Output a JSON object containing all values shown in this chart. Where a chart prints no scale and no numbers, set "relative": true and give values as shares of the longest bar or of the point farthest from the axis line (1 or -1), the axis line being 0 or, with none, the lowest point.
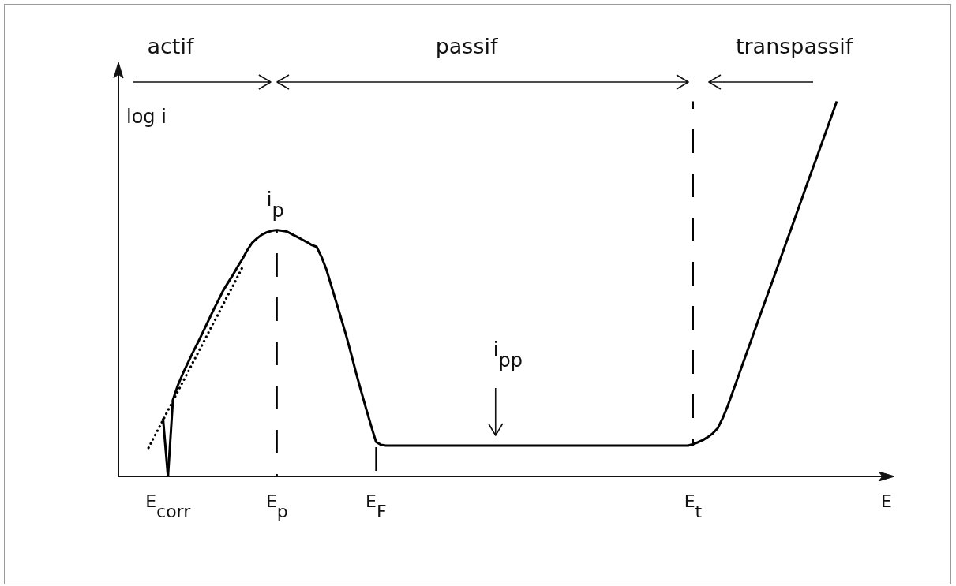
{
  "chart_data": {
    "type": "line",
    "relative": true,
    "xlabel": "E",
    "ylabel": "log i",
    "annotations": [
      "actif",
      "passif",
      "transpassif",
      "i$_{pp}$",
      {
        "text": "i$_{p}$",
        "x": "E$_{p}$",
        "y": 0.657
      }
    ],
    "categories": [
      null,
      null,
      null,
      null,
      null,
      null,
      null,
      null,
      null,
      null,
      "E$_{corr}$",
      null,
      null,
      null,
      null,
      null,
      null,
      null,
      null,
      null,
      null,
      null,
      null,
      null,
      null,
      null,
      null,
      null,
      null,
      null,
      null,
      null,
      "E$_{p}$",
      null,
      null,
      null,
      null,
      null,
      null,
      null,
      null,
      null,
      null,
      null,
      null,
      null,
      null,
      null,
      null,
      null,
      null,
      null,
      "E$_{F}$",
      null,
      null,
      null,
      null,
      null,
      null,
      null,
      null,
      null,
      null,
      null,
      null,
      null,
      null,
      null,
      null,
      null,
      null,
      null,
      null,
      null,
      null,
      null,
      null,
      null,
      null,
      null,
      null,
      null,
      null,
      null,
      null,
      null,
      null,
      null,
      null,
      null,
      null,
      null,
      null,
      null,
      null,
      null,
      null,
      null,
      null,
      null,
      null,
      null,
      null,
      null,
      null,
      null,
      null,
      null,
      null,
      null,
      null,
      null,
      null,
      null,
      null,
      null,
      "E$_{t}$",
      null,
      null,
      null,
      null,
      null,
      null,
      null,
      null,
      null,
      null,
      null,
      null,
      null,
      null,
      null,
      null,
      null,
      null,
      null,
      null,
      null,
      null,
      null,
      null,
      null,
      null,
      null,
      null,
      null,
      null,
      null,
      null,
      null,
      null,
      null,
      null,
      null,
      null,
      null,
      null
    ],
    "marker": "none",
    "line_style": "solid",
    "series": [
      {
        "color": "#000000",
        "values": [
          null,
          null,
          null,
          null,
          null,
          null,
          null,
          null,
          null,
          null,
          0,
          0.204,
          0.243,
          0.274,
          0.302,
          0.33,
          0.356,
          0.383,
          0.411,
          0.439,
          0.465,
          0.492,
          0.514,
          0.535,
          0.558,
          0.579,
          0.603,
          0.623,
          0.635,
          0.645,
          0.651,
          0.655,
          0.657,
          0.655,
          0.653,
          0.646,
          0.639,
          0.632,
          0.625,
          0.617,
          0.612,
          0.585,
          0.551,
          0.507,
          0.463,
          0.419,
          0.374,
          0.325,
          0.274,
          0.227,
          0.18,
          0.135,
          0.092,
          0.084,
          0.082,
          0.082,
          0.082,
          0.082,
          0.082,
          0.082,
          0.082,
          0.082,
          0.082,
          0.082,
          0.082,
          0.082,
          0.082,
          0.082,
          0.082,
          0.082,
          0.082,
          0.082,
          0.082,
          0.082,
          0.082,
          0.082,
          0.082,
          0.082,
          0.082,
          0.082,
          0.082,
          0.082,
          0.082,
          0.082,
          0.082,
          0.082,
          0.082,
          0.082,
          0.082,
          0.082,
          0.082,
          0.082,
          0.082,
          0.082,
          0.082,
          0.082,
          0.082,
          0.082,
          0.082,
          0.082,
          0.082,
          0.082,
          0.082,
          0.082,
          0.082,
          0.082,
          0.082,
          0.082,
          0.082,
          0.082,
          0.082,
          0.082,
          0.082,
          0.082,
          0.082,
          0.082,
          0.086,
          0.091,
          0.097,
          0.105,
          0.115,
          0.129,
          0.156,
          0.188,
          0.225,
          0.262,
          0.299,
          0.336,
          0.373,
          0.41,
          0.447,
          0.484,
          0.52,
          0.557,
          0.594,
          0.631,
          0.668,
          0.705,
          0.742,
          0.779,
          0.816,
          0.852,
          0.889,
          0.926,
          0.963,
          1,
          null,
          null,
          null,
          null,
          null,
          null,
          null,
          null,
          null,
          null,
          null
        ]
      },
      {
        "color": "#000000",
        "values": [
          null,
          null,
          null,
          null,
          null,
          null,
          null,
          null,
          null,
          0.155,
          0,
          null,
          null,
          null,
          null,
          null,
          null,
          null,
          null,
          null,
          null,
          null,
          null,
          null,
          null,
          null,
          null,
          null,
          null,
          null,
          null,
          null,
          null,
          null,
          null,
          null,
          null,
          null,
          null,
          null,
          null,
          null,
          null,
          null,
          null,
          null,
          null,
          null,
          null,
          null,
          null,
          null,
          null,
          null,
          null,
          null,
          null,
          null,
          null,
          null,
          null,
          null,
          null,
          null,
          null,
          null,
          null,
          null,
          null,
          null,
          null,
          null,
          null,
          null,
          null,
          null,
          null,
          null,
          null,
          null,
          null,
          null,
          null,
          null,
          null,
          null,
          null,
          null,
          null,
          null,
          null,
          null,
          null,
          null,
          null,
          null,
          null,
          null,
          null,
          null,
          null,
          null,
          null,
          null,
          null,
          null,
          null,
          null,
          null,
          null,
          null,
          null,
          null,
          null,
          null,
          null,
          null,
          null,
          null,
          null,
          null,
          null,
          null,
          null,
          null,
          null,
          null,
          null,
          null,
          null,
          null,
          null,
          null,
          null,
          null,
          null,
          null,
          null,
          null,
          null,
          null,
          null,
          null,
          null,
          null,
          null,
          null,
          null,
          null,
          null,
          null,
          null,
          null,
          null,
          null,
          null,
          null
        ]
      },
      {
        "color": "#000000",
        "line_style": "dotted",
        "values": [
          null,
          null,
          null,
          null,
          null,
          null,
          0.074,
          0.1,
          0.125,
          0.15,
          0.176,
          0.201,
          0.227,
          0.252,
          0.277,
          0.303,
          0.328,
          0.353,
          0.379,
          0.405,
          0.429,
          0.455,
          0.481,
          0.505,
          0.531,
          0.557,
          null,
          null,
          null,
          null,
          null,
          null,
          null,
          null,
          null,
          null,
          null,
          null,
          null,
          null,
          null,
          null,
          null,
          null,
          null,
          null,
          null,
          null,
          null,
          null,
          null,
          null,
          null,
          null,
          null,
          null,
          null,
          null,
          null,
          null,
          null,
          null,
          null,
          null,
          null,
          null,
          null,
          null,
          null,
          null,
          null,
          null,
          null,
          null,
          null,
          null,
          null,
          null,
          null,
          null,
          null,
          null,
          null,
          null,
          null,
          null,
          null,
          null,
          null,
          null,
          null,
          null,
          null,
          null,
          null,
          null,
          null,
          null,
          null,
          null,
          null,
          null,
          null,
          null,
          null,
          null,
          null,
          null,
          null,
          null,
          null,
          null,
          null,
          null,
          null,
          null,
          null,
          null,
          null,
          null,
          null,
          null,
          null,
          null,
          null,
          null,
          null,
          null,
          null,
          null,
          null,
          null,
          null,
          null,
          null,
          null,
          null,
          null,
          null,
          null,
          null,
          null,
          null,
          null,
          null,
          null,
          null,
          null,
          null,
          null,
          null,
          null,
          null,
          null,
          null,
          null,
          null
        ]
      },
      {
        "color": "#000000",
        "line_style": "dashed",
        "x": [
          "E$_{p}$",
          "E$_{p}$"
        ],
        "values": [
          0,
          0.657
        ]
      },
      {
        "color": "#000000",
        "line_style": "dashed",
        "x": [
          "E$_{F}$",
          "E$_{F}$"
        ],
        "values": [
          0,
          0.092
        ]
      },
      {
        "color": "#000000",
        "line_style": "dashed",
        "x": [
          "E$_{t}$",
          "E$_{t}$",
          "E$_{t}$"
        ],
        "values": [
          0.082,
          0.541,
          1
        ]
      }
    ]
  }
}
